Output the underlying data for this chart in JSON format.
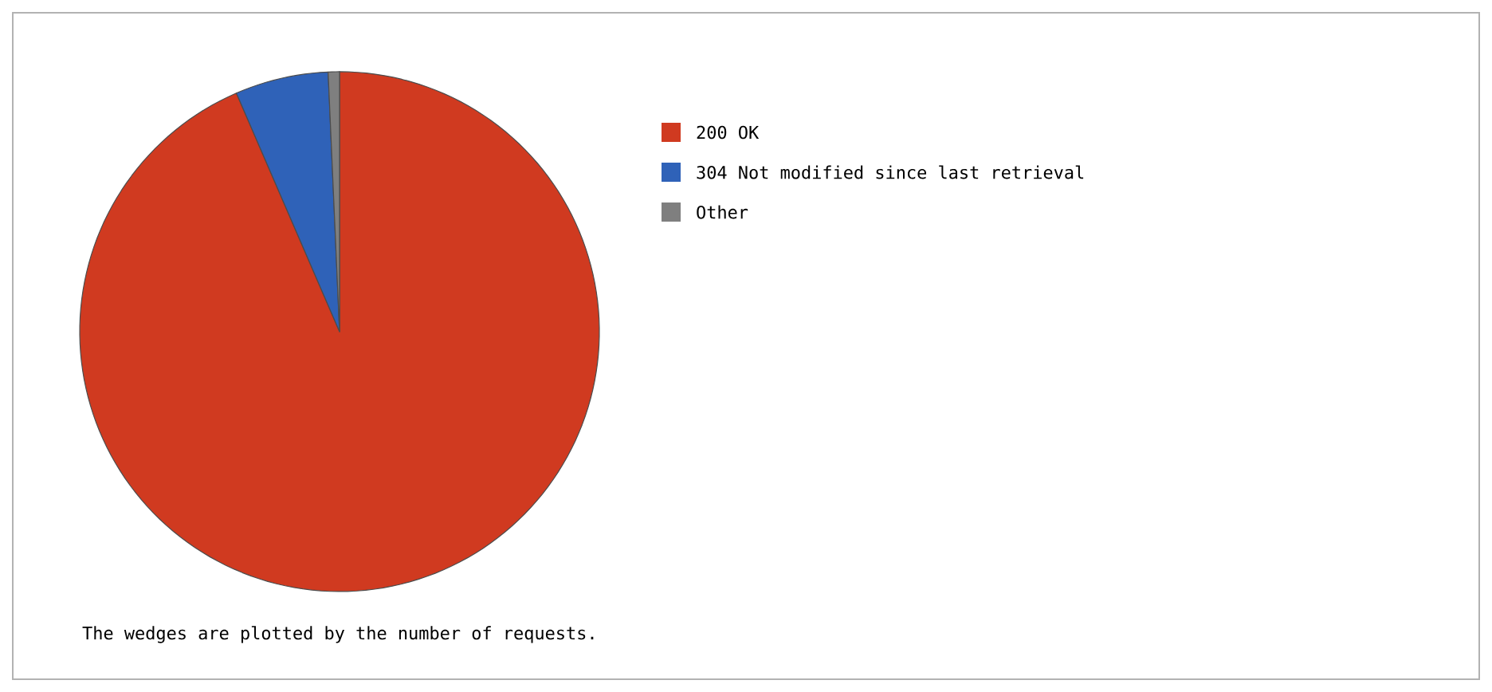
{
  "chart_data": {
    "type": "pie",
    "categories": [
      "200 OK",
      "304 Not modified since last retrieval",
      "Other"
    ],
    "values": [
      93.5,
      5.8,
      0.7
    ],
    "colors": [
      "#d03a20",
      "#2f62b8",
      "#7f7f7f"
    ],
    "legend": "right",
    "annotations": [
      "The wedges are plotted by the number of requests."
    ]
  }
}
